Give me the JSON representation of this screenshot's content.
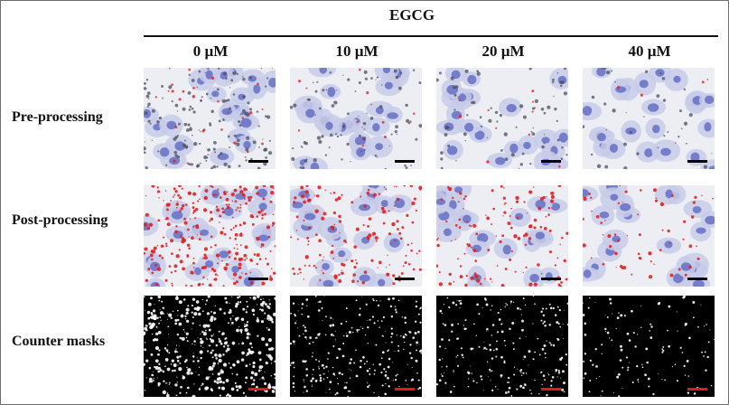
{
  "header": {
    "group_label": "EGCG"
  },
  "columns": [
    "0 µM",
    "10 µM",
    "20 µM",
    "40 µM"
  ],
  "rows": [
    "Pre-processing",
    "Post-processing",
    "Counter masks"
  ],
  "colors": {
    "nucleus": "#6b74c6",
    "cytoplasm": "#c8cbe8",
    "background": "#eceef4",
    "stain": "#e02020",
    "mask_background": "#000000",
    "mask_particles": "#ffffff",
    "scale_bar_dark": "#000000",
    "scale_bar_mask": "#e21a1a"
  },
  "staining_level": [
    1.0,
    0.55,
    0.45,
    0.2
  ]
}
